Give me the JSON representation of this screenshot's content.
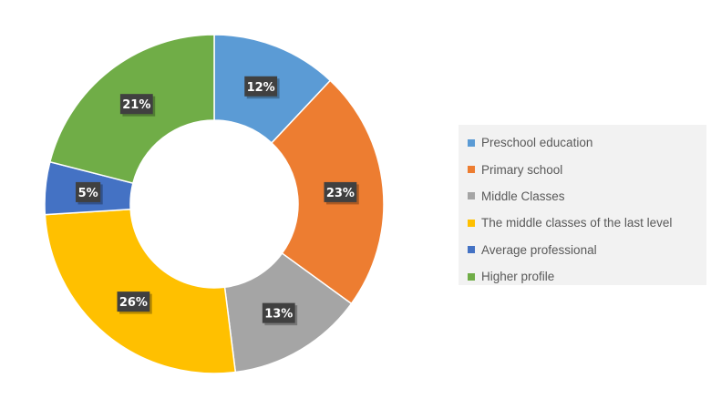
{
  "chart_data": {
    "type": "pie",
    "subtype": "doughnut",
    "title": "",
    "categories": [
      "Preschool education",
      "Primary school",
      "Middle Classes",
      "The middle classes of the last level",
      "Average professional",
      "Higher profile"
    ],
    "values": [
      12,
      23,
      13,
      26,
      5,
      21
    ],
    "labels": [
      "12%",
      "23%",
      "13%",
      "26%",
      "5%",
      "21%"
    ],
    "colors": [
      "#5b9bd5",
      "#ed7d31",
      "#a5a5a5",
      "#ffc000",
      "#4472c4",
      "#70ad47"
    ],
    "legend": {
      "position": "right"
    }
  }
}
